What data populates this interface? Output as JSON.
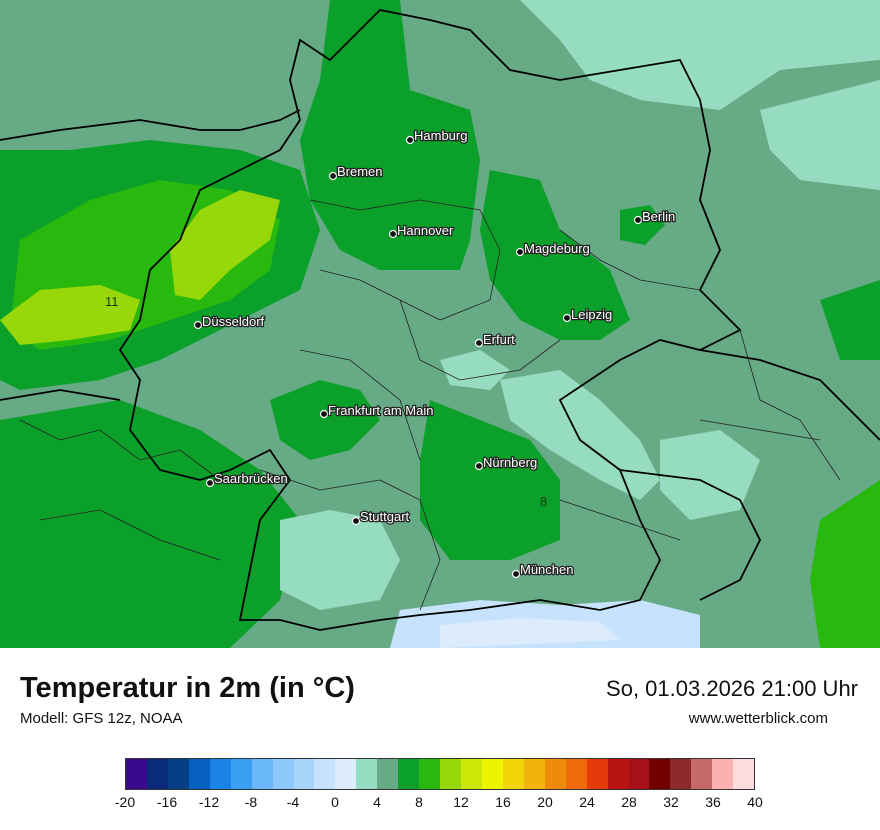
{
  "map": {
    "cities": [
      {
        "name": "Hamburg"
      },
      {
        "name": "Bremen"
      },
      {
        "name": "Berlin"
      },
      {
        "name": "Hannover"
      },
      {
        "name": "Magdeburg"
      },
      {
        "name": "Düsseldorf"
      },
      {
        "name": "Leipzig"
      },
      {
        "name": "Erfurt"
      },
      {
        "name": "Frankfurt am Main"
      },
      {
        "name": "Nürnberg"
      },
      {
        "name": "Saarbrücken"
      },
      {
        "name": "Stuttgart"
      },
      {
        "name": "München"
      }
    ],
    "value_labels": [
      "11",
      "8"
    ]
  },
  "footer": {
    "title": "Temperatur in 2m (in °C)",
    "model": "Modell: GFS 12z, NOAA",
    "datetime": "So, 01.03.2026 21:00 Uhr",
    "website": "www.wetterblick.com"
  },
  "legend": {
    "colors": [
      "#3a0a8c",
      "#0a2a7a",
      "#053f86",
      "#0660c0",
      "#1a84e6",
      "#3aa0f4",
      "#6ab8f8",
      "#8ec8fa",
      "#a8d4fb",
      "#c6e2fc",
      "#dcecfd",
      "#96dcc0",
      "#66aa86",
      "#0aa02a",
      "#28b80e",
      "#98d80a",
      "#cce608",
      "#eef400",
      "#f2d60a",
      "#f2b40a",
      "#f08a0a",
      "#ee6a0a",
      "#e63a0a",
      "#b81414",
      "#a6101a",
      "#720000",
      "#8c2a2a",
      "#c46a6a",
      "#fcb0b0",
      "#fcdcdc"
    ],
    "ticks": [
      "-20",
      "-16",
      "-12",
      "-8",
      "-4",
      "0",
      "4",
      "8",
      "12",
      "16",
      "20",
      "24",
      "28",
      "32",
      "36",
      "40"
    ]
  }
}
